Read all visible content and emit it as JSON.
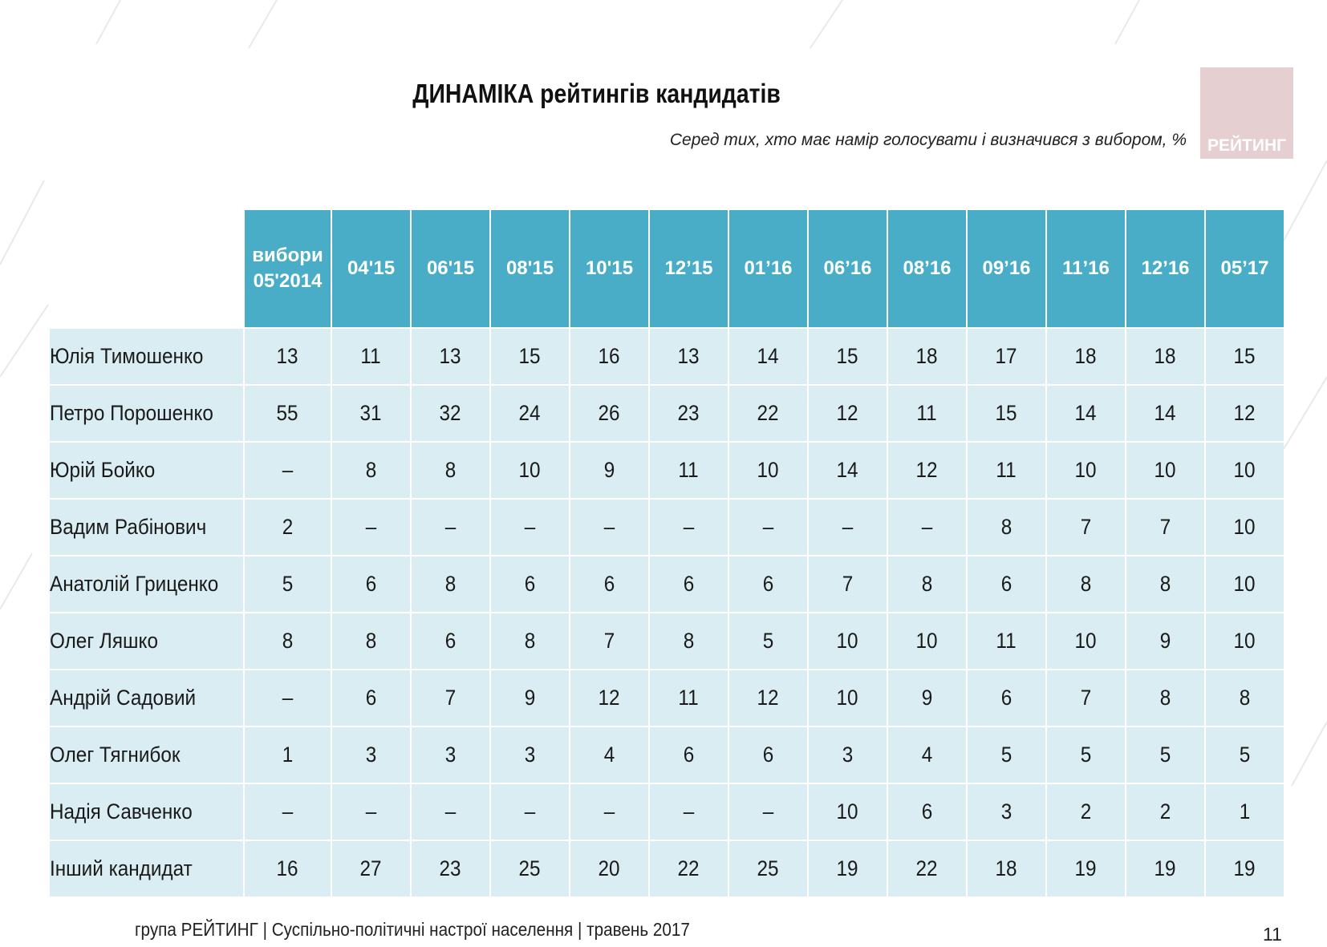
{
  "title": "ДИНАМІКА рейтингів кандидатів",
  "subtitle": "Серед тих, хто має намір голосувати і визначився з вибором, %",
  "logo": {
    "text": "РЕЙТИНГ",
    "color": "#e6cfd1"
  },
  "colors": {
    "header": "#4aadc8",
    "row": "#d9edf3"
  },
  "table": {
    "columns": [
      [
        "вибори",
        "05'2014"
      ],
      [
        "04'15"
      ],
      [
        "06'15"
      ],
      [
        "08'15"
      ],
      [
        "10'15"
      ],
      [
        "12’15"
      ],
      [
        "01’16"
      ],
      [
        "06’16"
      ],
      [
        "08’16"
      ],
      [
        "09’16"
      ],
      [
        "11’16"
      ],
      [
        "12’16"
      ],
      [
        "05’17"
      ]
    ],
    "rows": [
      {
        "name": "Юлія Тимошенко",
        "values": [
          "13",
          "11",
          "13",
          "15",
          "16",
          "13",
          "14",
          "15",
          "18",
          "17",
          "18",
          "18",
          "15"
        ]
      },
      {
        "name": "Петро Порошенко",
        "values": [
          "55",
          "31",
          "32",
          "24",
          "26",
          "23",
          "22",
          "12",
          "11",
          "15",
          "14",
          "14",
          "12"
        ]
      },
      {
        "name": "Юрій Бойко",
        "values": [
          "–",
          "8",
          "8",
          "10",
          "9",
          "11",
          "10",
          "14",
          "12",
          "11",
          "10",
          "10",
          "10"
        ]
      },
      {
        "name": "Вадим Рабінович",
        "values": [
          "2",
          "–",
          "–",
          "–",
          "–",
          "–",
          "–",
          "–",
          "–",
          "8",
          "7",
          "7",
          "10"
        ]
      },
      {
        "name": "Анатолій Гриценко",
        "values": [
          "5",
          "6",
          "8",
          "6",
          "6",
          "6",
          "6",
          "7",
          "8",
          "6",
          "8",
          "8",
          "10"
        ]
      },
      {
        "name": "Олег Ляшко",
        "values": [
          "8",
          "8",
          "6",
          "8",
          "7",
          "8",
          "5",
          "10",
          "10",
          "11",
          "10",
          "9",
          "10"
        ]
      },
      {
        "name": "Андрій Садовий",
        "values": [
          "–",
          "6",
          "7",
          "9",
          "12",
          "11",
          "12",
          "10",
          "9",
          "6",
          "7",
          "8",
          "8"
        ]
      },
      {
        "name": "Олег Тягнибок",
        "values": [
          "1",
          "3",
          "3",
          "3",
          "4",
          "6",
          "6",
          "3",
          "4",
          "5",
          "5",
          "5",
          "5"
        ]
      },
      {
        "name": "Надія Савченко",
        "values": [
          "–",
          "–",
          "–",
          "–",
          "–",
          "–",
          "–",
          "10",
          "6",
          "3",
          "2",
          "2",
          "1"
        ]
      },
      {
        "name": "Інший кандидат",
        "values": [
          "16",
          "27",
          "23",
          "25",
          "20",
          "22",
          "25",
          "19",
          "22",
          "18",
          "19",
          "19",
          "19"
        ]
      }
    ]
  },
  "footer": "група РЕЙТИНГ  | Суспільно-політичні настрої населення  |  травень 2017",
  "page_number": "11"
}
